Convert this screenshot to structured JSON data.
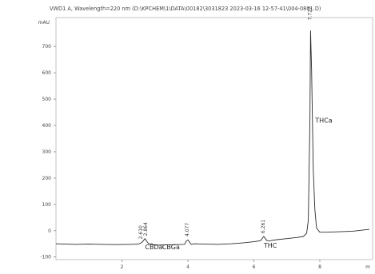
{
  "chart_data": {
    "type": "line",
    "title": "VWD1 A, Wavelength=220 nm (D:\\KPCHEM\\1\\DATA\\00182\\3031823 2023-03-16 12-57-41\\004-0801.D)",
    "y_unit": "mAU",
    "x_unit": "min",
    "xlim": [
      0.0,
      9.6
    ],
    "ylim": [
      -110,
      810
    ],
    "yticks": [
      "-100",
      "0",
      "100",
      "200",
      "300",
      "400",
      "500",
      "600",
      "700"
    ],
    "xticks": [
      "2",
      "4",
      "6",
      "8"
    ],
    "x_unit_label": "m",
    "y_unit_label": "mAU",
    "series": [
      {
        "x": [
          0.0,
          0.3,
          0.6,
          1.0,
          1.4,
          1.8,
          2.2,
          2.5,
          2.6,
          2.65,
          2.7,
          2.75,
          2.8,
          2.85,
          2.9,
          3.0,
          3.3,
          3.6,
          3.9,
          3.95,
          4.0,
          4.05,
          4.1,
          4.2,
          4.5,
          4.9,
          5.3,
          5.7,
          6.0,
          6.2,
          6.25,
          6.3,
          6.35,
          6.4,
          6.5,
          6.7,
          7.0,
          7.3,
          7.5,
          7.6,
          7.65,
          7.7,
          7.72,
          7.75,
          7.8,
          7.85,
          7.9,
          8.0,
          8.2,
          8.6,
          9.0,
          9.5
        ],
        "y": [
          -50,
          -51,
          -52,
          -51,
          -52,
          -53,
          -52,
          -51,
          -45,
          -38,
          -30,
          -40,
          -48,
          -52,
          -50,
          -55,
          -54,
          -53,
          -52,
          -40,
          -35,
          -44,
          -52,
          -50,
          -51,
          -52,
          -50,
          -46,
          -42,
          -38,
          -30,
          -22,
          -30,
          -38,
          -38,
          -34,
          -30,
          -26,
          -22,
          -10,
          40,
          420,
          760,
          610,
          230,
          80,
          10,
          -6,
          -6,
          -4,
          -2,
          5
        ]
      }
    ],
    "peak_labels": [
      {
        "x": 2.7,
        "y": -70,
        "text": "CBDa"
      },
      {
        "x": 3.22,
        "y": -70,
        "text": "CBGa"
      },
      {
        "x": 6.3,
        "y": -65,
        "text": "THC"
      },
      {
        "x": 7.86,
        "y": 410,
        "text": "THCa"
      }
    ],
    "retention_times": [
      {
        "x": 2.62,
        "y": -32,
        "text": "2.610"
      },
      {
        "x": 2.77,
        "y": -20,
        "text": "2.864"
      },
      {
        "x": 4.03,
        "y": -22,
        "text": "4.077"
      },
      {
        "x": 6.33,
        "y": -10,
        "text": "6.261"
      },
      {
        "x": 7.74,
        "y": 800,
        "text": "7.727"
      }
    ]
  }
}
